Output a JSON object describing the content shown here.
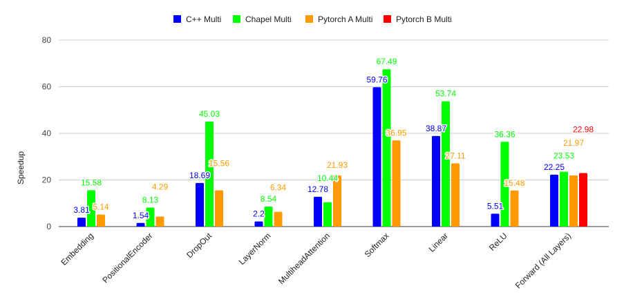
{
  "chart_data": {
    "type": "bar",
    "title": "",
    "xlabel": "",
    "ylabel": "Speedup",
    "ylim": [
      0,
      80
    ],
    "yticks": [
      "0",
      "20",
      "40",
      "60",
      "80"
    ],
    "grid": true,
    "legend_position": "top",
    "categories": [
      "Embedding",
      "PositionalEncoder",
      "DropOut",
      "LayerNorm",
      "MultiheadAttention",
      "Softmax",
      "Linear",
      "ReLU",
      "Forward (All Layers)"
    ],
    "series": [
      {
        "name": "C++ Multi",
        "color": "#0000ff",
        "values": [
          3.81,
          1.54,
          18.69,
          2.2,
          12.78,
          59.76,
          38.87,
          5.51,
          22.25
        ]
      },
      {
        "name": "Chapel Multi",
        "color": "#00ff00",
        "values": [
          15.58,
          8.13,
          45.03,
          8.54,
          10.44,
          67.49,
          53.74,
          36.36,
          23.53
        ]
      },
      {
        "name": "Pytorch A Multi",
        "color": "#ff9900",
        "values": [
          5.14,
          4.29,
          15.56,
          6.34,
          21.93,
          36.95,
          27.11,
          15.48,
          21.97
        ]
      },
      {
        "name": "Pytorch B Multi",
        "color": "#ff0000",
        "values": [
          null,
          null,
          null,
          null,
          null,
          null,
          null,
          null,
          22.98
        ]
      }
    ]
  }
}
